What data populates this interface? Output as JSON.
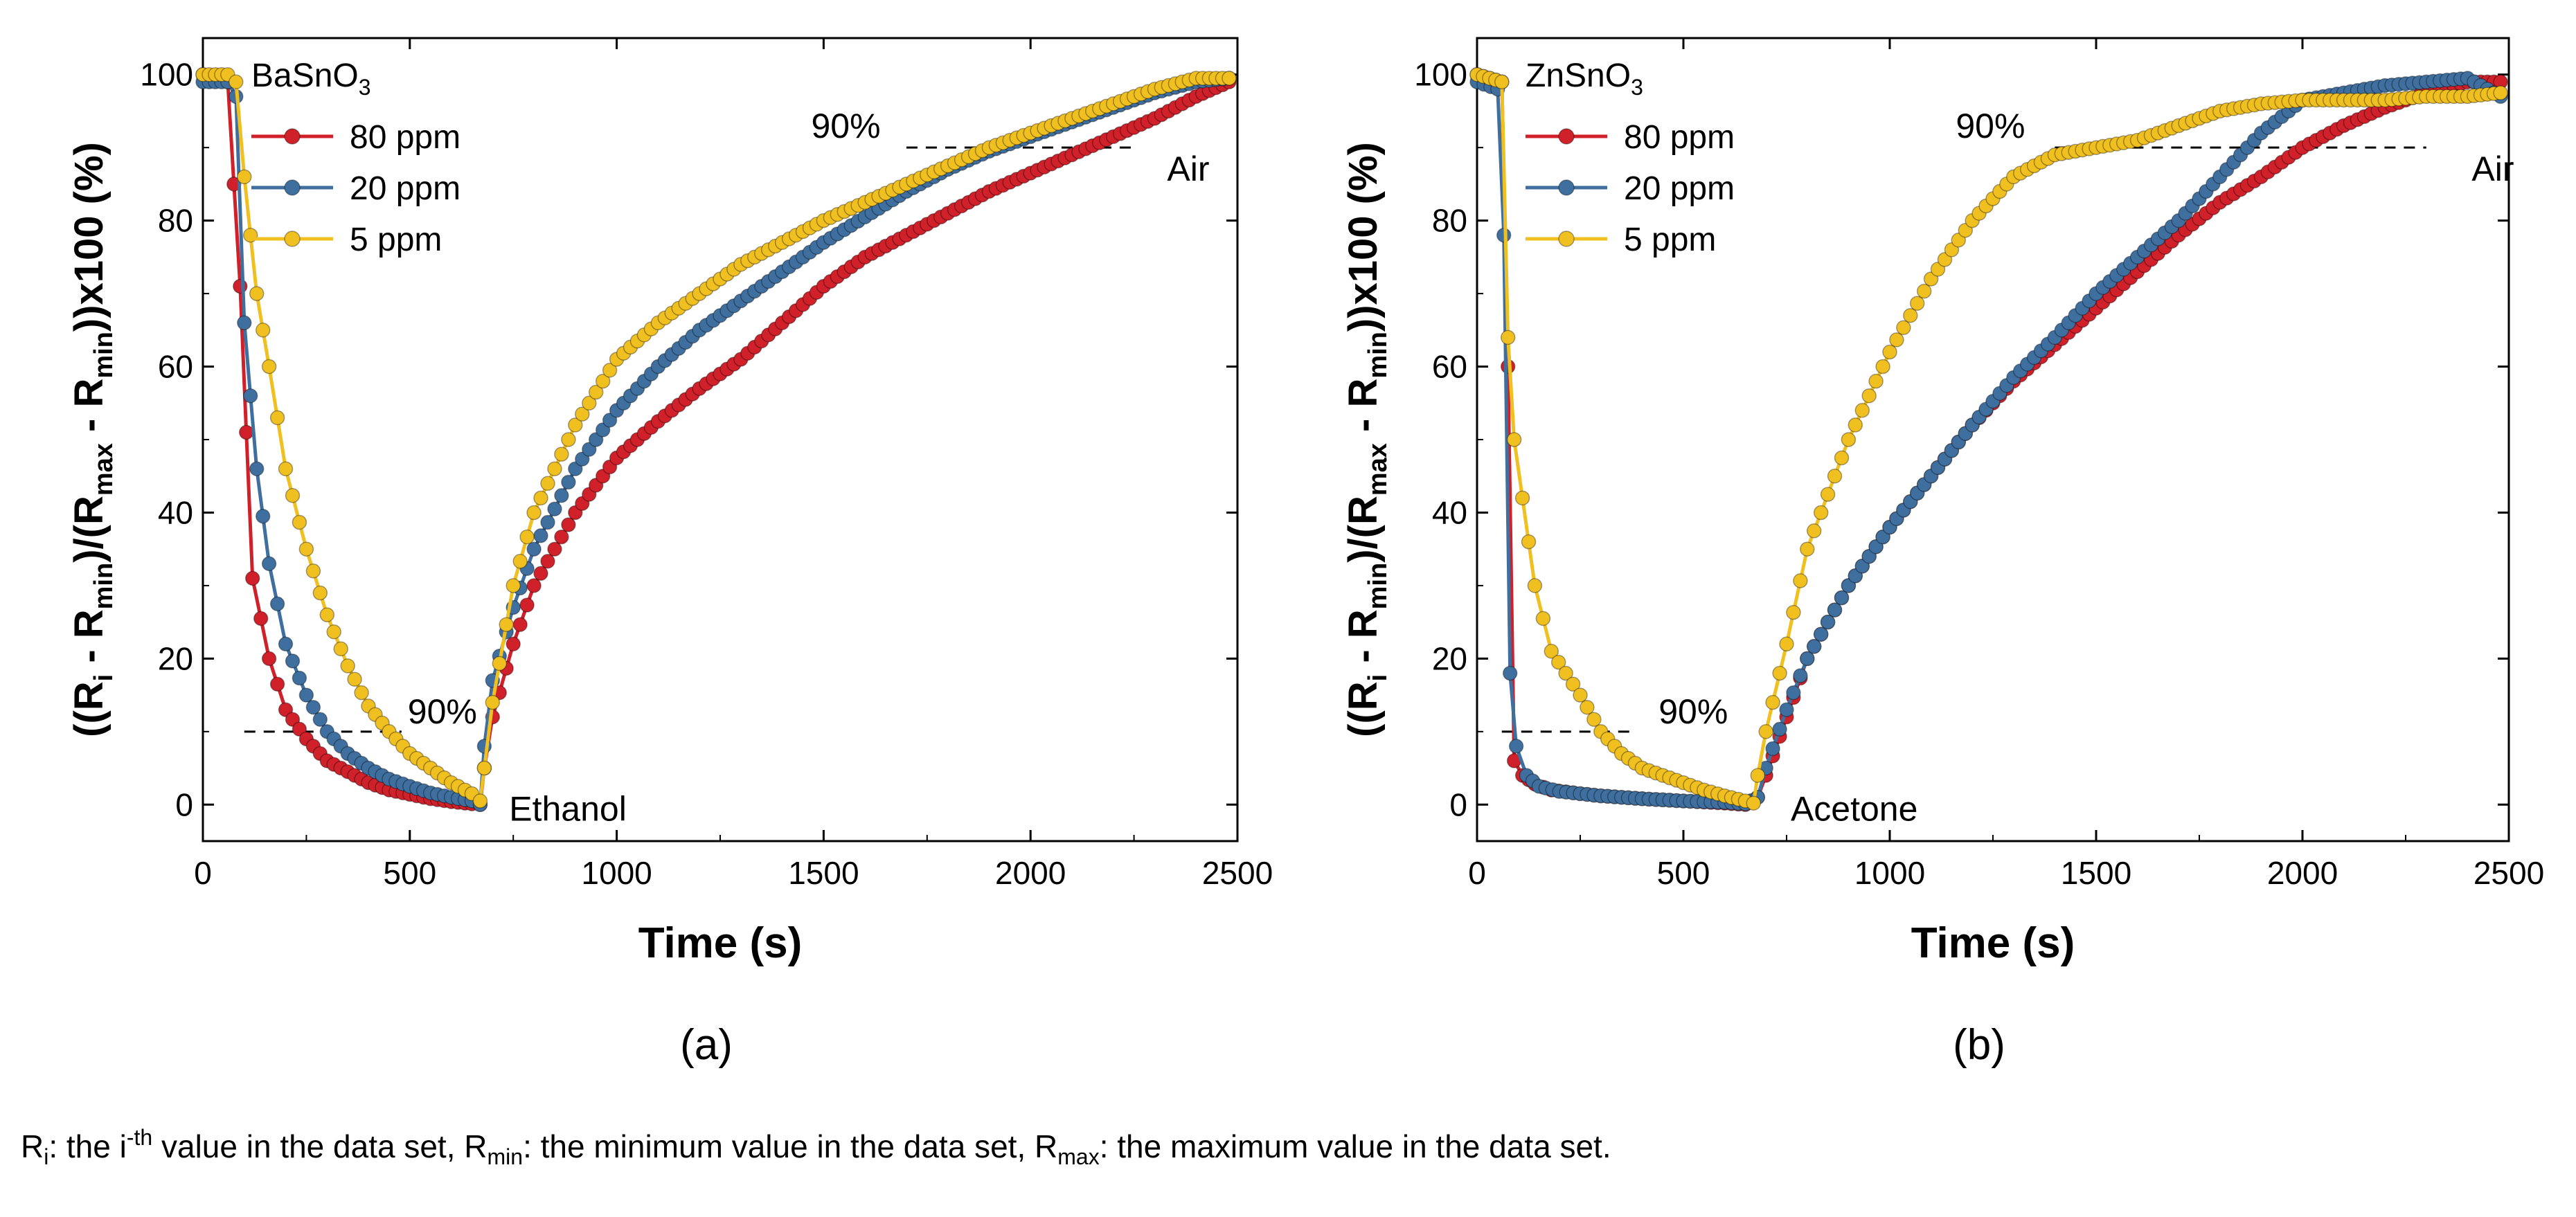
{
  "chart_data": [
    {
      "type": "line",
      "panel_label": "(a)",
      "material": "BaSnO",
      "material_subscript": "3",
      "xlabel": "Time (s)",
      "ylabel": "((R_i - R_min)/(R_max - R_min))x100 (%)",
      "xlim": [
        0,
        2500
      ],
      "ylim": [
        -5,
        105
      ],
      "xticks": [
        "0",
        "500",
        "1000",
        "1500",
        "2000",
        "2500"
      ],
      "yticks": [
        "0",
        "20",
        "40",
        "60",
        "80",
        "100"
      ],
      "response_label": "90%",
      "recovery_label": "90%",
      "gas_label": "Ethanol",
      "air_label": "Air",
      "series": [
        {
          "name": "80 ppm",
          "color": "#d0202a",
          "x": [
            0,
            60,
            90,
            120,
            160,
            200,
            250,
            300,
            350,
            400,
            450,
            500,
            550,
            600,
            650,
            670,
            680,
            700,
            750,
            800,
            900,
            1000,
            1100,
            1200,
            1300,
            1400,
            1500,
            1600,
            1700,
            1800,
            1900,
            2000,
            2100,
            2200,
            2300,
            2400,
            2480
          ],
          "y": [
            100,
            99,
            71,
            31,
            20,
            13,
            9,
            6,
            4.5,
            3,
            2,
            1.4,
            0.8,
            0.4,
            0.1,
            0,
            5,
            12,
            22,
            30,
            40,
            47.5,
            52.5,
            57,
            61,
            66,
            71,
            75,
            78,
            81,
            84,
            86.5,
            89,
            91.5,
            94,
            97,
            99
          ]
        },
        {
          "name": "20 ppm",
          "color": "#3f6f9f",
          "x": [
            0,
            60,
            80,
            100,
            130,
            160,
            200,
            250,
            300,
            350,
            400,
            450,
            500,
            550,
            600,
            650,
            670,
            680,
            700,
            750,
            800,
            900,
            1000,
            1100,
            1200,
            1300,
            1400,
            1500,
            1600,
            1700,
            1800,
            1900,
            2000,
            2100,
            2200,
            2300,
            2400,
            2480
          ],
          "y": [
            99,
            99,
            97,
            66,
            46,
            33,
            22,
            15,
            10,
            7,
            5,
            3.5,
            2.5,
            1.6,
            1,
            0.5,
            0,
            8,
            17,
            27,
            35,
            46,
            54,
            60,
            65,
            69,
            73,
            77,
            80.5,
            84,
            87,
            89.5,
            91.5,
            93.5,
            95.5,
            97.5,
            99,
            99.5
          ]
        },
        {
          "name": "5 ppm",
          "color": "#f0c020",
          "x": [
            0,
            60,
            80,
            100,
            130,
            160,
            200,
            250,
            300,
            350,
            400,
            450,
            500,
            550,
            600,
            650,
            670,
            680,
            700,
            750,
            800,
            900,
            1000,
            1100,
            1200,
            1300,
            1400,
            1500,
            1600,
            1700,
            1800,
            1900,
            2000,
            2100,
            2200,
            2300,
            2400,
            2480
          ],
          "y": [
            100,
            100,
            99,
            86,
            70,
            60,
            46,
            35,
            26,
            19,
            13.5,
            10,
            7,
            5,
            3,
            1.5,
            0.5,
            5,
            14,
            30,
            40,
            52,
            61,
            66,
            70,
            74,
            77,
            80,
            82.5,
            85,
            87.5,
            90,
            92,
            94,
            96,
            98,
            99.5,
            99.5
          ]
        }
      ]
    },
    {
      "type": "line",
      "panel_label": "(b)",
      "material": "ZnSnO",
      "material_subscript": "3",
      "xlabel": "Time (s)",
      "ylabel": "((R_i - R_min)/(R_max - R_min))x100 (%)",
      "xlim": [
        0,
        2500
      ],
      "ylim": [
        -5,
        105
      ],
      "xticks": [
        "0",
        "500",
        "1000",
        "1500",
        "2000",
        "2500"
      ],
      "yticks": [
        "0",
        "20",
        "40",
        "60",
        "80",
        "100"
      ],
      "response_label": "90%",
      "recovery_label": "90%",
      "gas_label": "Acetone",
      "air_label": "Air",
      "series": [
        {
          "name": "80 ppm",
          "color": "#d0202a",
          "x": [
            0,
            60,
            75,
            90,
            110,
            140,
            180,
            250,
            300,
            400,
            500,
            600,
            650,
            680,
            700,
            750,
            800,
            900,
            1000,
            1100,
            1200,
            1300,
            1400,
            1500,
            1600,
            1700,
            1800,
            1900,
            2000,
            2100,
            2200,
            2300,
            2400,
            2480
          ],
          "y": [
            100,
            99,
            60,
            6,
            4,
            2.8,
            2,
            1.5,
            1.2,
            0.8,
            0.5,
            0.2,
            0,
            1,
            4,
            12,
            20,
            30,
            38,
            45,
            52,
            58,
            63,
            68,
            73,
            78,
            82.5,
            86,
            90,
            93,
            95.5,
            97.5,
            99,
            99
          ]
        },
        {
          "name": "20 ppm",
          "color": "#3f6f9f",
          "x": [
            0,
            50,
            65,
            80,
            95,
            120,
            150,
            200,
            300,
            400,
            500,
            600,
            650,
            680,
            700,
            750,
            800,
            900,
            1000,
            1100,
            1200,
            1300,
            1400,
            1500,
            1600,
            1700,
            1800,
            1900,
            2000,
            2100,
            2200,
            2300,
            2400,
            2480
          ],
          "y": [
            99,
            98,
            78,
            18,
            8,
            4,
            2.5,
            1.8,
            1.2,
            0.8,
            0.5,
            0.3,
            0.1,
            1,
            5,
            13,
            20,
            30,
            38,
            45,
            52,
            58.5,
            64,
            70,
            75,
            80,
            86,
            92,
            96.5,
            97.5,
            98.5,
            99,
            99.5,
            97
          ]
        },
        {
          "name": "5 ppm",
          "color": "#f0c020",
          "x": [
            0,
            60,
            75,
            90,
            110,
            140,
            180,
            250,
            300,
            350,
            400,
            450,
            500,
            550,
            600,
            650,
            670,
            680,
            700,
            750,
            800,
            900,
            1000,
            1100,
            1200,
            1300,
            1400,
            1500,
            1600,
            1700,
            1800,
            1900,
            2000,
            2100,
            2200,
            2300,
            2400,
            2480
          ],
          "y": [
            100,
            99,
            64,
            50,
            42,
            30,
            21,
            15,
            10,
            7,
            5,
            4,
            3,
            2,
            1.2,
            0.5,
            0.2,
            4,
            10,
            22,
            35,
            50,
            62,
            72,
            80,
            86,
            89,
            90,
            91,
            93,
            95,
            96,
            96.5,
            96.5,
            96.5,
            97,
            97,
            97.5
          ]
        }
      ]
    }
  ],
  "caption": "R_i: the i-th value in the data set, R_min: the minimum value in the data set, R_max: the maximum value in the data set.",
  "caption_parts": {
    "r_i": "R",
    "r_i_sub": "i",
    "p1": ": the i",
    "p1_sup": "-th",
    "p2": " value in the data set, ",
    "r_min": "R",
    "r_min_sub": "min",
    "p3": ": the minimum value in the data set, ",
    "r_max": "R",
    "r_max_sub": "max",
    "p4": ": the maximum value in the data set."
  },
  "ylabel_parts": {
    "a": "((R",
    "a_sub": "i",
    "b": " - R",
    "b_sub": "min",
    "c": ")/(R",
    "c_sub": "max",
    "d": " - R",
    "d_sub": "min",
    "e": "))x100 (%)"
  }
}
